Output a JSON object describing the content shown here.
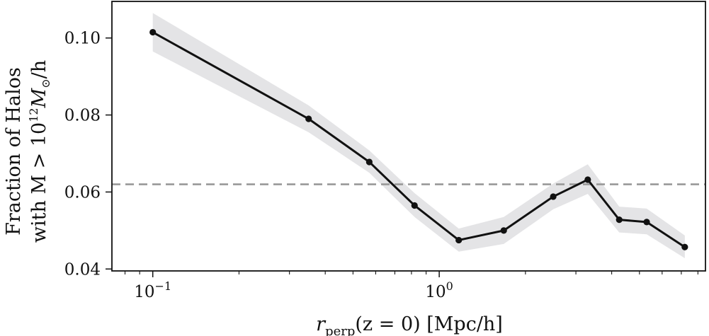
{
  "chart_data": {
    "type": "line",
    "title": "",
    "xscale": "log",
    "xlim": [
      0.072,
      8.5
    ],
    "ylim": [
      0.0395,
      0.1095
    ],
    "grid": false,
    "x_ticks": [
      {
        "value": 0.1,
        "base": "10",
        "exp": "−1"
      },
      {
        "value": 1.0,
        "base": "10",
        "exp": "0"
      }
    ],
    "y_ticks": [
      {
        "value": 0.04,
        "label": "0.04"
      },
      {
        "value": 0.06,
        "label": "0.06"
      },
      {
        "value": 0.08,
        "label": "0.08"
      },
      {
        "value": 0.1,
        "label": "0.10"
      }
    ],
    "xlabel": {
      "var": "r",
      "sub": "perp",
      "rest": "(z = 0) [Mpc/h]"
    },
    "ylabel": {
      "line1": "Fraction of Halos",
      "line2_pre": "with M > 10",
      "line2_sup": "12",
      "line2_mid": "M",
      "line2_sub": "⊙",
      "line2_post": "/h"
    },
    "reference_line": {
      "y": 0.062,
      "style": "dashed",
      "color": "#999999"
    },
    "series": [
      {
        "x": [
          0.1,
          0.35,
          0.57,
          0.82,
          1.17,
          1.68,
          2.5,
          3.3,
          4.25,
          5.3,
          7.2
        ],
        "y": [
          0.1015,
          0.079,
          0.0678,
          0.0565,
          0.0475,
          0.05,
          0.0588,
          0.0632,
          0.0528,
          0.0522,
          0.0457
        ],
        "lower": [
          0.0965,
          0.0755,
          0.065,
          0.0535,
          0.0445,
          0.0465,
          0.0555,
          0.0595,
          0.0495,
          0.049,
          0.0428
        ],
        "upper": [
          0.1065,
          0.0825,
          0.0708,
          0.0597,
          0.0505,
          0.0535,
          0.0622,
          0.0672,
          0.0562,
          0.0557,
          0.0487
        ],
        "color": "#111111",
        "band_color": "#e4e4e6"
      }
    ]
  }
}
